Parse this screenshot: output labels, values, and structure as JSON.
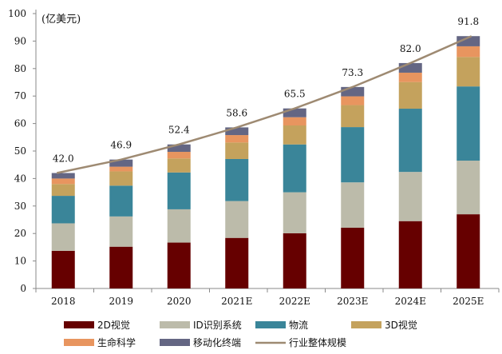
{
  "chart_data": {
    "type": "bar",
    "stacked": true,
    "unit_label": "(亿美元)",
    "categories": [
      "2018",
      "2019",
      "2020",
      "2021E",
      "2022E",
      "2023E",
      "2024E",
      "2025E"
    ],
    "ylim": [
      0,
      100
    ],
    "yticks": [
      0,
      10,
      20,
      30,
      40,
      50,
      60,
      70,
      80,
      90,
      100
    ],
    "grid": false,
    "legend_position": "bottom",
    "series": [
      {
        "name": "2D视觉",
        "color": "#660000",
        "values": [
          13.7,
          15.2,
          16.7,
          18.4,
          20.1,
          22.1,
          24.5,
          27.0
        ]
      },
      {
        "name": "ID识别系统",
        "color": "#bcbbaa",
        "values": [
          10.0,
          11.0,
          12.1,
          13.4,
          14.9,
          16.5,
          17.9,
          19.5
        ]
      },
      {
        "name": "物流",
        "color": "#3a8599",
        "values": [
          10.0,
          11.2,
          13.4,
          15.3,
          17.4,
          20.1,
          23.0,
          27.0
        ]
      },
      {
        "name": "3D视觉",
        "color": "#c4a25d",
        "values": [
          4.3,
          5.2,
          5.1,
          6.0,
          6.9,
          8.0,
          9.7,
          10.7
        ]
      },
      {
        "name": "生命科学",
        "color": "#e8955f",
        "values": [
          2.0,
          1.7,
          2.4,
          2.7,
          3.0,
          3.2,
          3.4,
          3.9
        ]
      },
      {
        "name": "移动化终端",
        "color": "#646683",
        "values": [
          2.0,
          2.6,
          2.7,
          2.8,
          3.2,
          3.4,
          3.5,
          3.7
        ]
      }
    ],
    "line": {
      "name": "行业整体规模",
      "color": "#9e8a72",
      "values": [
        42.0,
        46.9,
        52.4,
        58.6,
        65.5,
        73.3,
        82.0,
        91.8
      ],
      "labels": [
        "42.0",
        "46.9",
        "52.4",
        "58.6",
        "65.5",
        "73.3",
        "82.0",
        "91.8"
      ]
    }
  }
}
